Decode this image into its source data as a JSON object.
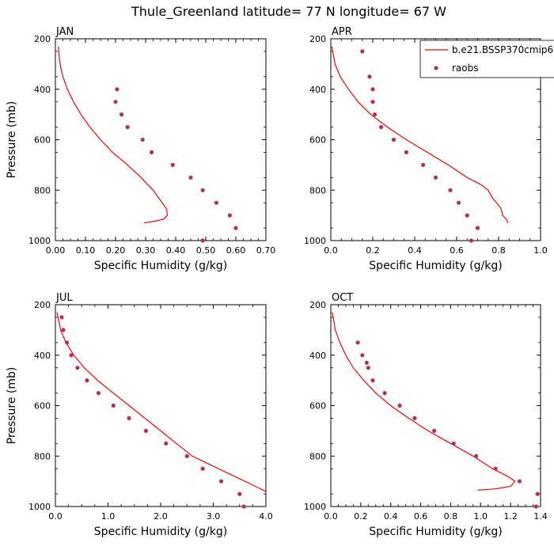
{
  "figure": {
    "title": "Thule_Greenland  latitude= 77 N longitude= 67 W"
  },
  "legend": {
    "placement": "top-right of second panel",
    "entries": [
      {
        "label": "b.e21.BSSP370cmip6",
        "kind": "line",
        "color": "#ff0000"
      },
      {
        "label": "raobs",
        "kind": "marker",
        "color": "#b03060"
      }
    ]
  },
  "chart_data": [
    {
      "type": "line",
      "panel_label": "JAN",
      "xlabel": "Specific Humidity (g/kg)",
      "ylabel": "Pressure (mb)",
      "xlim": [
        0,
        0.7
      ],
      "ylim": [
        1000,
        200
      ],
      "x_ticks": [
        0.0,
        0.1,
        0.2,
        0.3,
        0.4,
        0.5,
        0.6,
        0.7
      ],
      "x_tick_labels": [
        "0.00",
        "0.10",
        "0.20",
        "0.30",
        "0.40",
        "0.50",
        "0.60",
        "0.70"
      ],
      "y_ticks": [
        200,
        400,
        600,
        800,
        1000
      ],
      "y_tick_labels": [
        "200",
        "400",
        "600",
        "800",
        "1000"
      ],
      "series": [
        {
          "name": "b.e21.BSSP370cmip6",
          "kind": "line",
          "x": [
            0.01,
            0.012,
            0.017,
            0.025,
            0.04,
            0.06,
            0.085,
            0.115,
            0.15,
            0.19,
            0.24,
            0.285,
            0.325,
            0.355,
            0.37,
            0.372,
            0.36,
            0.335,
            0.295
          ],
          "y": [
            230,
            270,
            310,
            350,
            400,
            450,
            500,
            550,
            600,
            650,
            700,
            750,
            800,
            850,
            875,
            900,
            915,
            922,
            930
          ]
        },
        {
          "name": "raobs",
          "kind": "scatter",
          "x": [
            0.205,
            0.2,
            0.22,
            0.24,
            0.29,
            0.32,
            0.39,
            0.45,
            0.49,
            0.535,
            0.58,
            0.6,
            0.49
          ],
          "y": [
            400,
            450,
            500,
            550,
            600,
            650,
            700,
            750,
            800,
            850,
            900,
            950,
            1000
          ]
        }
      ]
    },
    {
      "type": "line",
      "panel_label": "APR",
      "xlabel": "Specific Humidity (g/kg)",
      "ylabel": "",
      "xlim": [
        0,
        1.0
      ],
      "ylim": [
        1000,
        200
      ],
      "x_ticks": [
        0.0,
        0.2,
        0.4,
        0.6,
        0.8,
        1.0
      ],
      "x_tick_labels": [
        "0.0",
        "0.2",
        "0.4",
        "0.6",
        "0.8",
        "1.0"
      ],
      "y_ticks": [
        200,
        400,
        600,
        800,
        1000
      ],
      "y_tick_labels": [
        "200",
        "400",
        "600",
        "800",
        "1000"
      ],
      "series": [
        {
          "name": "b.e21.BSSP370cmip6",
          "kind": "line",
          "x": [
            0.005,
            0.02,
            0.045,
            0.085,
            0.13,
            0.19,
            0.27,
            0.36,
            0.46,
            0.56,
            0.65,
            0.72,
            0.75,
            0.77,
            0.79,
            0.81,
            0.82,
            0.83,
            0.84,
            0.845
          ],
          "y": [
            230,
            300,
            350,
            400,
            450,
            500,
            550,
            600,
            650,
            700,
            750,
            780,
            800,
            830,
            850,
            870,
            900,
            910,
            920,
            930
          ]
        },
        {
          "name": "raobs",
          "kind": "scatter",
          "x": [
            0.15,
            0.185,
            0.2,
            0.2,
            0.21,
            0.24,
            0.3,
            0.36,
            0.44,
            0.5,
            0.57,
            0.61,
            0.65,
            0.7,
            0.67
          ],
          "y": [
            250,
            350,
            400,
            450,
            500,
            550,
            600,
            650,
            700,
            750,
            800,
            850,
            900,
            950,
            1000
          ]
        }
      ]
    },
    {
      "type": "line",
      "panel_label": "JUL",
      "xlabel": "Specific Humidity (g/kg)",
      "ylabel": "Pressure (mb)",
      "xlim": [
        0,
        4.0
      ],
      "ylim": [
        1000,
        200
      ],
      "x_ticks": [
        0.0,
        1.0,
        2.0,
        3.0,
        4.0
      ],
      "x_tick_labels": [
        "0.0",
        "1.0",
        "2.0",
        "3.0",
        "4.0"
      ],
      "y_ticks": [
        200,
        400,
        600,
        800,
        1000
      ],
      "y_tick_labels": [
        "200",
        "400",
        "600",
        "800",
        "1000"
      ],
      "series": [
        {
          "name": "b.e21.BSSP370cmip6",
          "kind": "line",
          "x": [
            0.03,
            0.1,
            0.2,
            0.35,
            0.55,
            0.8,
            1.1,
            1.4,
            1.7,
            2.0,
            2.3,
            2.6,
            2.9,
            3.2,
            3.5,
            3.8,
            4.0
          ],
          "y": [
            230,
            300,
            350,
            400,
            450,
            500,
            550,
            600,
            650,
            700,
            750,
            800,
            830,
            860,
            890,
            920,
            940
          ]
        },
        {
          "name": "raobs",
          "kind": "scatter",
          "x": [
            0.12,
            0.15,
            0.22,
            0.3,
            0.42,
            0.6,
            0.82,
            1.1,
            1.4,
            1.72,
            2.1,
            2.5,
            2.8,
            3.15,
            3.5,
            3.58
          ],
          "y": [
            250,
            300,
            350,
            400,
            450,
            500,
            550,
            600,
            650,
            700,
            750,
            800,
            850,
            900,
            950,
            1000
          ]
        }
      ]
    },
    {
      "type": "line",
      "panel_label": "OCT",
      "xlabel": "Specific Humidity (g/kg)",
      "ylabel": "",
      "xlim": [
        0,
        1.4
      ],
      "ylim": [
        1000,
        200
      ],
      "x_ticks": [
        0.0,
        0.2,
        0.4,
        0.6,
        0.8,
        1.0,
        1.2,
        1.4
      ],
      "x_tick_labels": [
        "0.0",
        "0.2",
        "0.4",
        "0.6",
        "0.8",
        "1.0",
        "1.2",
        "1.4"
      ],
      "y_ticks": [
        200,
        400,
        600,
        800,
        1000
      ],
      "y_tick_labels": [
        "200",
        "400",
        "600",
        "800",
        "1000"
      ],
      "series": [
        {
          "name": "b.e21.BSSP370cmip6",
          "kind": "line",
          "x": [
            0.01,
            0.03,
            0.06,
            0.1,
            0.15,
            0.22,
            0.3,
            0.4,
            0.52,
            0.65,
            0.8,
            0.95,
            1.08,
            1.18,
            1.23,
            1.2,
            1.1,
            0.98
          ],
          "y": [
            230,
            300,
            350,
            400,
            450,
            500,
            550,
            600,
            650,
            700,
            750,
            800,
            850,
            880,
            900,
            920,
            930,
            935
          ]
        },
        {
          "name": "raobs",
          "kind": "scatter",
          "x": [
            0.18,
            0.21,
            0.24,
            0.25,
            0.28,
            0.36,
            0.46,
            0.56,
            0.69,
            0.82,
            0.97,
            1.1,
            1.26,
            1.38,
            1.37
          ],
          "y": [
            350,
            400,
            430,
            450,
            500,
            550,
            600,
            650,
            700,
            750,
            800,
            850,
            900,
            950,
            1000
          ]
        }
      ]
    }
  ]
}
